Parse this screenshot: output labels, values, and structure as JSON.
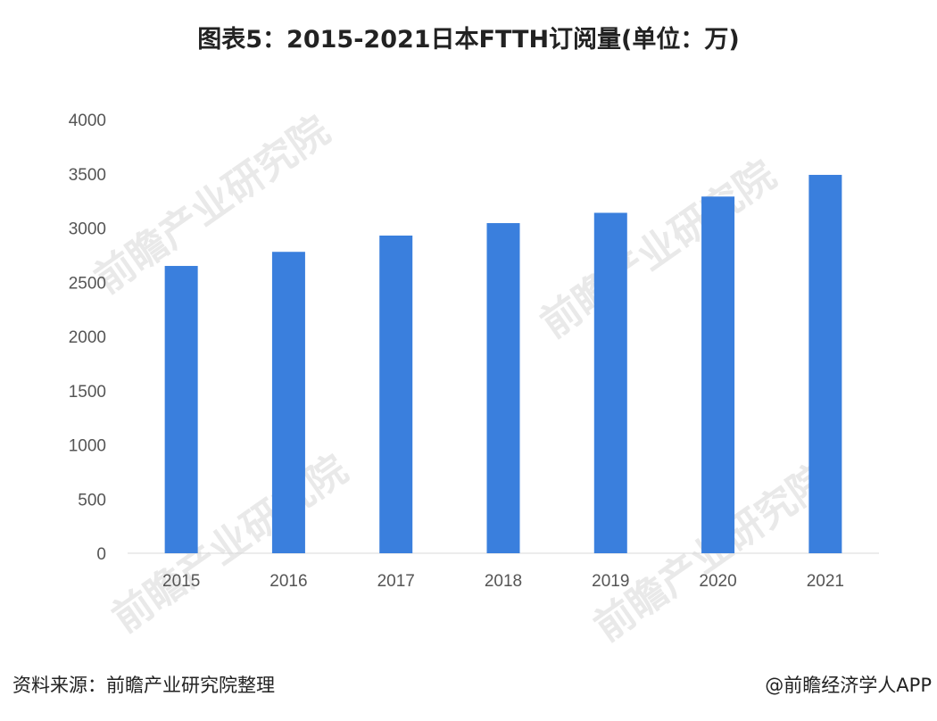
{
  "chart_data": {
    "type": "bar",
    "title": "图表5：2015-2021日本FTTH订阅量(单位：万)",
    "categories": [
      "2015",
      "2016",
      "2017",
      "2018",
      "2019",
      "2020",
      "2021"
    ],
    "values": [
      2650,
      2780,
      2930,
      3045,
      3140,
      3290,
      3490
    ],
    "xlabel": "",
    "ylabel": "",
    "ylim": [
      0,
      4000
    ],
    "yticks": [
      0,
      500,
      1000,
      1500,
      2000,
      2500,
      3000,
      3500,
      4000
    ],
    "grid": false,
    "legend": "none",
    "bar_color": "#3a7fdd"
  },
  "footer": {
    "source": "资料来源：前瞻产业研究院整理",
    "credit": "@前瞻经济学人APP"
  },
  "watermark": "前瞻产业研究院"
}
